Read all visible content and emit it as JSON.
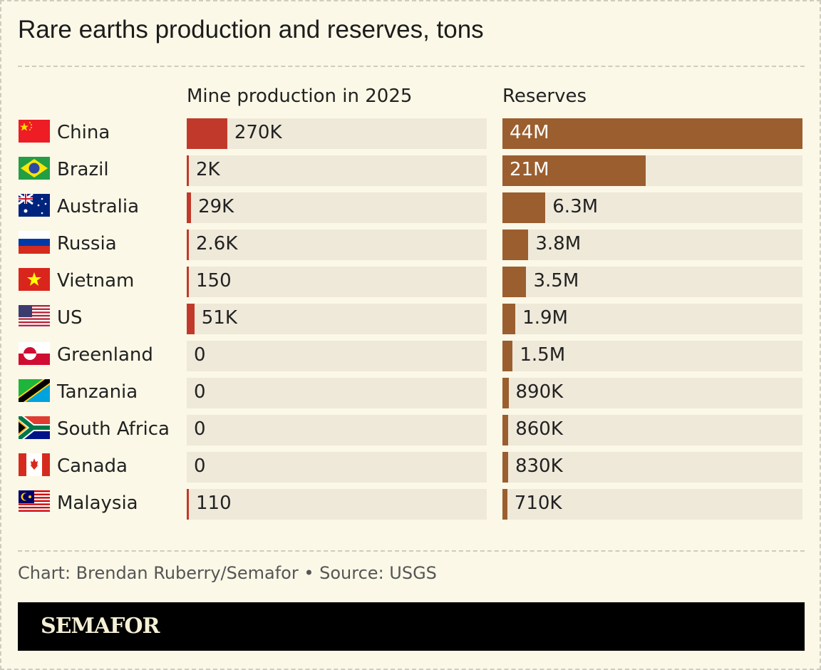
{
  "title": "Rare earths production and reserves, tons",
  "source": "Chart: Brendan Ruberry/Semafor • Source: USGS",
  "brand": "SEMAFOR",
  "colors": {
    "production": "#c1392a",
    "reserves": "#9b5e2f",
    "track": "#efe9da",
    "background": "#fbf8e7"
  },
  "chart_data": {
    "type": "bar",
    "categories": [
      "China",
      "Brazil",
      "Australia",
      "Russia",
      "Vietnam",
      "US",
      "Greenland",
      "Tanzania",
      "South Africa",
      "Canada",
      "Malaysia"
    ],
    "flags": [
      "china-flag",
      "brazil-flag",
      "australia-flag",
      "russia-flag",
      "vietnam-flag",
      "us-flag",
      "greenland-flag",
      "tanzania-flag",
      "south-africa-flag",
      "canada-flag",
      "malaysia-flag"
    ],
    "series": [
      {
        "name": "Mine production in 2025",
        "values": [
          270000,
          2000,
          29000,
          2600,
          150,
          51000,
          0,
          0,
          0,
          0,
          110
        ],
        "labels": [
          "270K",
          "2K",
          "29K",
          "2.6K",
          "150",
          "51K",
          "0",
          "0",
          "0",
          "0",
          "110"
        ],
        "xlim": [
          0,
          2000000
        ]
      },
      {
        "name": "Reserves",
        "values": [
          44000000,
          21000000,
          6300000,
          3800000,
          3500000,
          1900000,
          1500000,
          890000,
          860000,
          830000,
          710000
        ],
        "labels": [
          "44M",
          "21M",
          "6.3M",
          "3.8M",
          "3.5M",
          "1.9M",
          "1.5M",
          "890K",
          "860K",
          "830K",
          "710K"
        ],
        "xlim": [
          0,
          44000000
        ]
      }
    ]
  }
}
